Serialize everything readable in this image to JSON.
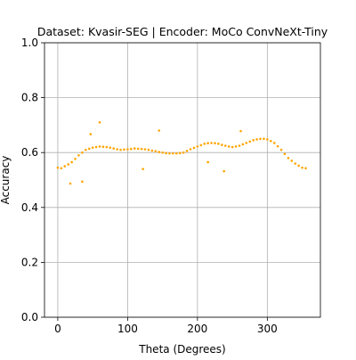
{
  "chart_data": {
    "type": "scatter",
    "title": "Dataset: Kvasir-SEG | Encoder: MoCo ConvNeXt-Tiny",
    "x_label": "Theta (Degrees)",
    "y_label": "Accuracy",
    "color": "#ffa500",
    "grid": true,
    "xlim": [
      -19,
      376
    ],
    "xticks": [
      0,
      100,
      200,
      300
    ],
    "ylim": [
      0,
      1
    ],
    "yticks": [
      {
        "value": 0,
        "label": "0.0"
      },
      {
        "value": 0.2,
        "label": "0.2"
      },
      {
        "value": 0.4,
        "label": "0.4"
      },
      {
        "value": 0.6,
        "label": "0.6"
      },
      {
        "value": 0.8,
        "label": "0.8"
      },
      {
        "value": 1,
        "label": "1.0"
      }
    ],
    "x": [
      0,
      5,
      10,
      15,
      20,
      25,
      30,
      35,
      40,
      45,
      50,
      55,
      60,
      65,
      70,
      75,
      80,
      85,
      90,
      95,
      100,
      105,
      110,
      115,
      120,
      125,
      130,
      135,
      140,
      145,
      150,
      155,
      160,
      165,
      170,
      175,
      180,
      185,
      190,
      195,
      200,
      205,
      210,
      215,
      220,
      225,
      230,
      235,
      240,
      245,
      250,
      255,
      260,
      265,
      270,
      275,
      280,
      285,
      290,
      295,
      300,
      305,
      310,
      315,
      320,
      325,
      330,
      335,
      340,
      345,
      350,
      355,
      18,
      35,
      47,
      60,
      122,
      145,
      215,
      238,
      262
    ],
    "values": [
      0.545,
      0.543,
      0.55,
      0.557,
      0.565,
      0.577,
      0.59,
      0.6,
      0.61,
      0.614,
      0.618,
      0.62,
      0.622,
      0.621,
      0.62,
      0.618,
      0.615,
      0.612,
      0.61,
      0.611,
      0.612,
      0.613,
      0.615,
      0.614,
      0.613,
      0.612,
      0.61,
      0.607,
      0.605,
      0.602,
      0.6,
      0.598,
      0.597,
      0.597,
      0.597,
      0.598,
      0.6,
      0.606,
      0.612,
      0.617,
      0.622,
      0.627,
      0.632,
      0.634,
      0.635,
      0.634,
      0.632,
      0.628,
      0.625,
      0.622,
      0.62,
      0.622,
      0.625,
      0.63,
      0.635,
      0.64,
      0.645,
      0.648,
      0.65,
      0.65,
      0.648,
      0.642,
      0.635,
      0.623,
      0.61,
      0.595,
      0.58,
      0.57,
      0.56,
      0.552,
      0.545,
      0.543,
      0.487,
      0.494,
      0.667,
      0.71,
      0.54,
      0.68,
      0.565,
      0.532,
      0.678
    ]
  }
}
